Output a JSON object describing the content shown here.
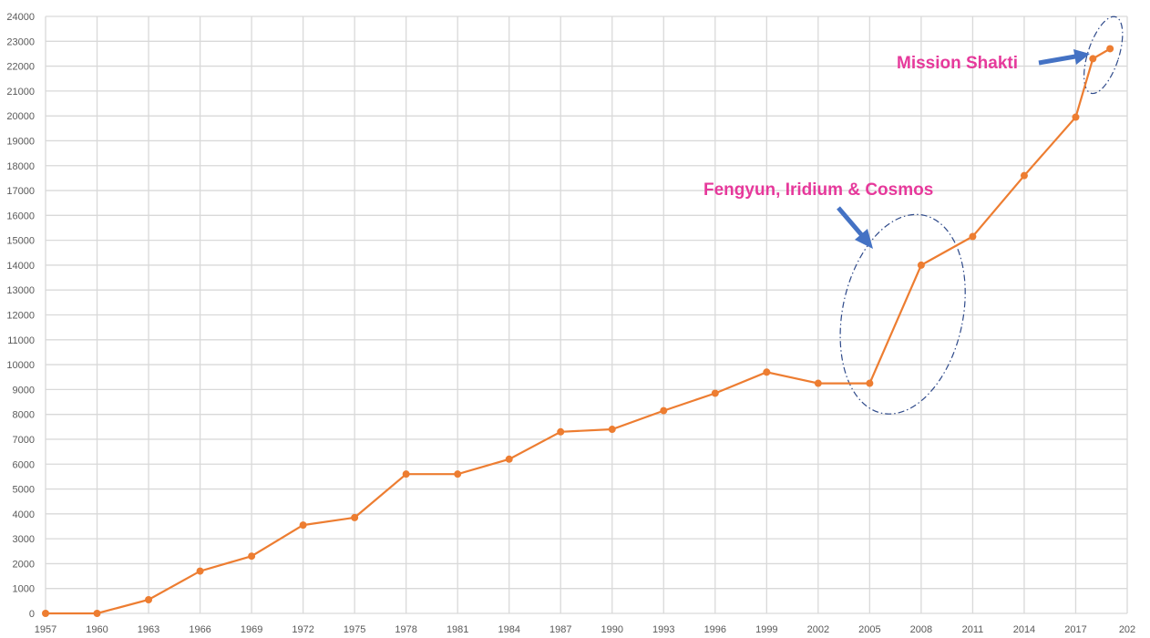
{
  "chart_data": {
    "type": "line",
    "title": "",
    "xlabel": "",
    "ylabel": "",
    "xlim": [
      1957,
      2020
    ],
    "ylim": [
      0,
      24000
    ],
    "grid": true,
    "x_ticks": [
      "1957",
      "1960",
      "1963",
      "1966",
      "1969",
      "1972",
      "1975",
      "1978",
      "1981",
      "1984",
      "1987",
      "1990",
      "1993",
      "1996",
      "1999",
      "2002",
      "2005",
      "2008",
      "2011",
      "2014",
      "2017",
      "202"
    ],
    "y_ticks": [
      "0",
      "1000",
      "2000",
      "3000",
      "4000",
      "5000",
      "6000",
      "7000",
      "8000",
      "9000",
      "10000",
      "11000",
      "12000",
      "13000",
      "14000",
      "15000",
      "16000",
      "17000",
      "18000",
      "19000",
      "20000",
      "21000",
      "22000",
      "23000",
      "24000"
    ],
    "series": [
      {
        "color": "#ed7d31",
        "x": [
          1957,
          1960,
          1963,
          1966,
          1969,
          1972,
          1975,
          1978,
          1981,
          1984,
          1987,
          1990,
          1993,
          1996,
          1999,
          2002,
          2005,
          2008,
          2011,
          2014,
          2017,
          2018,
          2019
        ],
        "y": [
          0,
          0,
          550,
          1700,
          2300,
          3550,
          3850,
          5600,
          5600,
          6200,
          7300,
          7400,
          8150,
          8850,
          9700,
          9250,
          9250,
          14000,
          15150,
          17600,
          19950,
          22300,
          22700
        ]
      }
    ],
    "annotations": [
      {
        "text": "Fengyun, Iridium & Cosmos"
      },
      {
        "text": "Mission Shakti"
      }
    ]
  }
}
